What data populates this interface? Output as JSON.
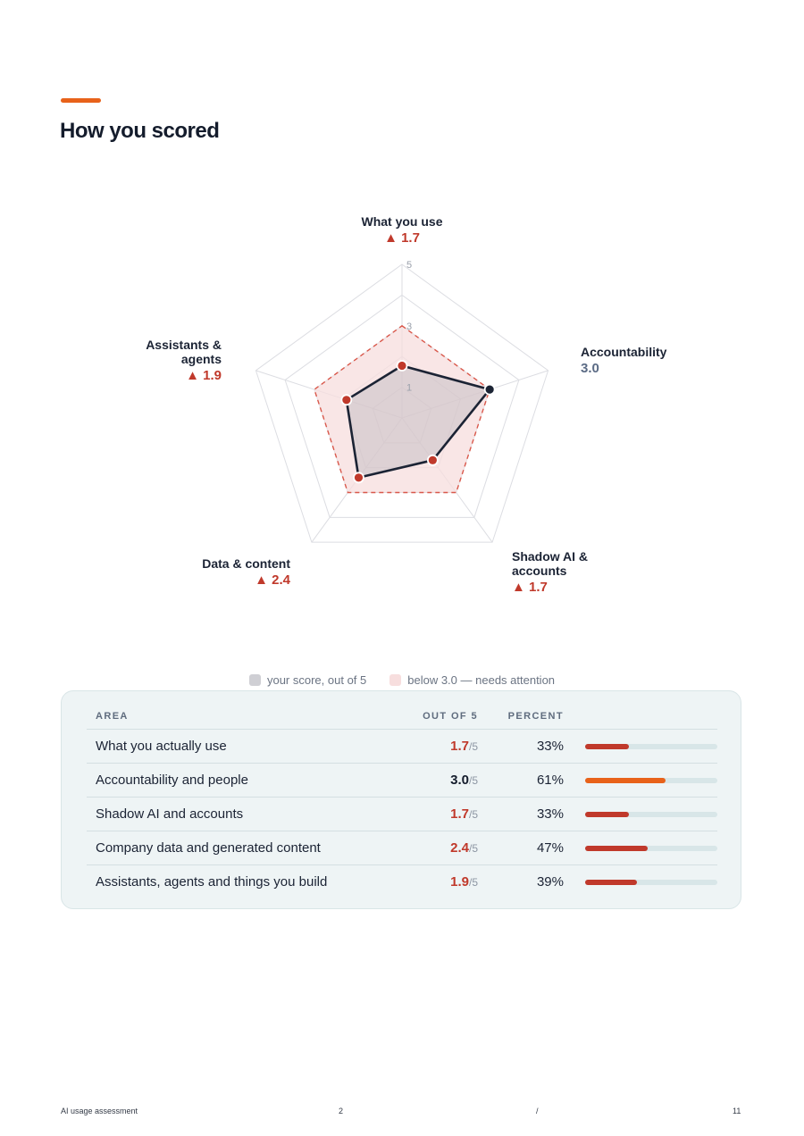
{
  "header": {
    "title": "How you scored"
  },
  "colors": {
    "accent": "#e8621a",
    "low": "#c0392b",
    "ok_bar": "#e8621a",
    "navy": "#1b2334",
    "attention_fill": "#f7dede"
  },
  "chart_data": {
    "type": "radar",
    "scale_max": 5,
    "ring_labels": [
      "1",
      "3",
      "5"
    ],
    "threshold": 3.0,
    "axes": [
      {
        "name": "What you use",
        "score": 1.7,
        "display": "▲ 1.7",
        "below_threshold": true
      },
      {
        "name": "Accountability",
        "score": 3.0,
        "display": "3.0",
        "below_threshold": false
      },
      {
        "name": "Shadow AI & accounts",
        "score": 1.7,
        "display": "▲ 1.7",
        "below_threshold": true
      },
      {
        "name": "Data & content",
        "score": 2.4,
        "display": "▲ 2.4",
        "below_threshold": true
      },
      {
        "name": "Assistants & agents",
        "score": 1.9,
        "display": "▲ 1.9",
        "below_threshold": true
      }
    ]
  },
  "legend": {
    "score": "your score, out of 5",
    "attention": "below 3.0 — needs attention"
  },
  "table": {
    "headers": {
      "area": "AREA",
      "score": "OUT OF 5",
      "percent": "PERCENT"
    },
    "out_of_suffix": "/5",
    "rows": [
      {
        "area": "What you actually use",
        "score": "1.7",
        "percent": "33%",
        "fraction": 0.33,
        "low": true
      },
      {
        "area": "Accountability and people",
        "score": "3.0",
        "percent": "61%",
        "fraction": 0.61,
        "low": false
      },
      {
        "area": "Shadow AI and accounts",
        "score": "1.7",
        "percent": "33%",
        "fraction": 0.33,
        "low": true
      },
      {
        "area": "Company data and generated content",
        "score": "2.4",
        "percent": "47%",
        "fraction": 0.47,
        "low": true
      },
      {
        "area": "Assistants, agents and things you build",
        "score": "1.9",
        "percent": "39%",
        "fraction": 0.39,
        "low": true
      }
    ]
  },
  "footer": {
    "doc_title": "AI usage assessment",
    "page": "2",
    "separator": "/",
    "total": "11"
  }
}
